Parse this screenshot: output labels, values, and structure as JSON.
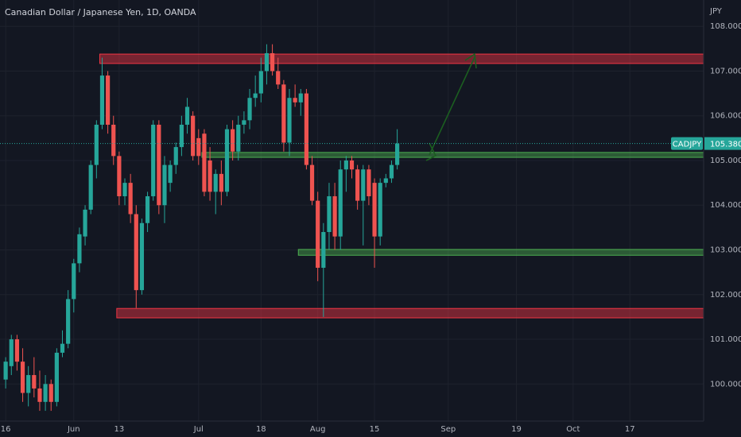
{
  "chart_data": {
    "type": "candlestick",
    "title": "Canadian Dollar / Japanese Yen, 1D, OANDA",
    "y_axis_label": "JPY",
    "ylim": [
      99.17,
      108.59
    ],
    "yticks": [
      {
        "value": 100,
        "label": "100.000"
      },
      {
        "value": 101,
        "label": "101.000"
      },
      {
        "value": 102,
        "label": "102.000"
      },
      {
        "value": 103,
        "label": "103.000"
      },
      {
        "value": 104,
        "label": "104.000"
      },
      {
        "value": 105,
        "label": "105.000"
      },
      {
        "value": 106,
        "label": "106.000"
      },
      {
        "value": 107,
        "label": "107.000"
      },
      {
        "value": 108,
        "label": "108.000"
      }
    ],
    "xlim": [
      -1,
      123
    ],
    "xticks": [
      {
        "value": 0,
        "label": "16"
      },
      {
        "value": 12,
        "label": "Jun"
      },
      {
        "value": 20,
        "label": "13"
      },
      {
        "value": 34,
        "label": "Jul"
      },
      {
        "value": 45,
        "label": "18"
      },
      {
        "value": 55,
        "label": "Aug"
      },
      {
        "value": 65,
        "label": "15"
      },
      {
        "value": 78,
        "label": "Sep"
      },
      {
        "value": 90,
        "label": "19"
      },
      {
        "value": 100,
        "label": "Oct"
      },
      {
        "value": 110,
        "label": "17"
      }
    ],
    "up_color": "#26a69a",
    "down_color": "#ef5350",
    "candles": [
      [
        100.1,
        100.6,
        99.9,
        100.5
      ],
      [
        100.4,
        101.1,
        100.2,
        101.0
      ],
      [
        101.0,
        101.1,
        100.3,
        100.5
      ],
      [
        100.5,
        100.8,
        99.6,
        99.8
      ],
      [
        99.8,
        100.4,
        99.5,
        100.2
      ],
      [
        100.2,
        100.6,
        99.7,
        99.9
      ],
      [
        99.9,
        100.3,
        99.4,
        99.6
      ],
      [
        99.6,
        100.2,
        99.4,
        100.0
      ],
      [
        100.0,
        100.1,
        99.4,
        99.6
      ],
      [
        99.6,
        100.8,
        99.5,
        100.7
      ],
      [
        100.7,
        101.2,
        100.6,
        100.9
      ],
      [
        100.9,
        102.1,
        100.8,
        101.9
      ],
      [
        101.9,
        102.8,
        101.6,
        102.7
      ],
      [
        102.7,
        103.5,
        102.5,
        103.35
      ],
      [
        103.3,
        104.0,
        103.1,
        103.9
      ],
      [
        103.9,
        105.0,
        103.8,
        104.9
      ],
      [
        104.9,
        105.9,
        104.6,
        105.8
      ],
      [
        105.8,
        107.3,
        105.7,
        106.9
      ],
      [
        106.9,
        107.0,
        105.6,
        105.8
      ],
      [
        105.8,
        106.0,
        104.9,
        105.1
      ],
      [
        105.1,
        105.2,
        104.0,
        104.2
      ],
      [
        104.2,
        104.6,
        104.0,
        104.5
      ],
      [
        104.5,
        104.7,
        103.6,
        103.8
      ],
      [
        103.8,
        104.0,
        101.7,
        102.1
      ],
      [
        102.1,
        103.7,
        102.0,
        103.6
      ],
      [
        103.6,
        104.3,
        103.4,
        104.2
      ],
      [
        104.2,
        105.9,
        104.1,
        105.8
      ],
      [
        105.8,
        105.9,
        103.8,
        104.0
      ],
      [
        104.0,
        105.1,
        103.6,
        104.9
      ],
      [
        104.5,
        105.0,
        104.3,
        104.9
      ],
      [
        104.9,
        105.4,
        104.7,
        105.3
      ],
      [
        105.3,
        106.0,
        105.1,
        105.8
      ],
      [
        105.8,
        106.4,
        105.6,
        106.2
      ],
      [
        106.0,
        106.1,
        105.0,
        105.1
      ],
      [
        105.5,
        105.7,
        104.9,
        105.1
      ],
      [
        105.6,
        105.7,
        104.2,
        104.3
      ],
      [
        105.0,
        105.3,
        104.1,
        104.3
      ],
      [
        104.3,
        104.8,
        103.8,
        104.7
      ],
      [
        104.7,
        105.0,
        104.0,
        104.3
      ],
      [
        104.3,
        105.8,
        104.2,
        105.7
      ],
      [
        105.7,
        105.9,
        105.0,
        105.2
      ],
      [
        105.2,
        106.0,
        105.0,
        105.8
      ],
      [
        105.8,
        106.1,
        105.6,
        105.9
      ],
      [
        105.9,
        106.6,
        105.7,
        106.4
      ],
      [
        106.4,
        106.9,
        106.2,
        106.5
      ],
      [
        106.5,
        107.3,
        106.3,
        107.0
      ],
      [
        107.0,
        107.6,
        106.7,
        107.4
      ],
      [
        107.4,
        107.6,
        106.9,
        107.0
      ],
      [
        107.0,
        107.3,
        106.6,
        106.7
      ],
      [
        106.7,
        106.8,
        105.2,
        105.4
      ],
      [
        105.4,
        106.6,
        105.1,
        106.4
      ],
      [
        106.4,
        106.7,
        106.2,
        106.3
      ],
      [
        106.3,
        106.6,
        106.0,
        106.5
      ],
      [
        106.5,
        106.6,
        104.8,
        104.9
      ],
      [
        104.9,
        105.1,
        104.0,
        104.1
      ],
      [
        104.1,
        104.3,
        102.3,
        102.6
      ],
      [
        102.6,
        103.6,
        101.5,
        103.4
      ],
      [
        103.4,
        104.5,
        103.0,
        104.2
      ],
      [
        104.2,
        104.5,
        103.0,
        103.3
      ],
      [
        103.3,
        105.0,
        103.0,
        104.8
      ],
      [
        104.8,
        105.1,
        104.3,
        105.0
      ],
      [
        105.0,
        105.1,
        104.6,
        104.8
      ],
      [
        104.8,
        104.9,
        103.9,
        104.1
      ],
      [
        104.1,
        104.9,
        103.1,
        104.8
      ],
      [
        104.8,
        104.9,
        104.0,
        104.2
      ],
      [
        104.5,
        104.6,
        102.6,
        103.3
      ],
      [
        103.3,
        104.6,
        103.1,
        104.5
      ],
      [
        104.5,
        104.7,
        104.4,
        104.6
      ],
      [
        104.6,
        105.0,
        104.5,
        104.9
      ],
      [
        104.9,
        105.7,
        104.8,
        105.38
      ]
    ],
    "zones": [
      {
        "top": 107.38,
        "bottom": 107.17,
        "start": 17,
        "color": "#f23645"
      },
      {
        "top": 101.69,
        "bottom": 101.48,
        "start": 20,
        "color": "#f23645"
      },
      {
        "top": 105.18,
        "bottom": 105.07,
        "start": 35,
        "color": "#4caf50"
      },
      {
        "top": 103.01,
        "bottom": 102.88,
        "start": 52,
        "color": "#4caf50"
      }
    ],
    "symbol": "CADJPY",
    "last_price": {
      "value": 105.38,
      "label": "105.380"
    }
  }
}
